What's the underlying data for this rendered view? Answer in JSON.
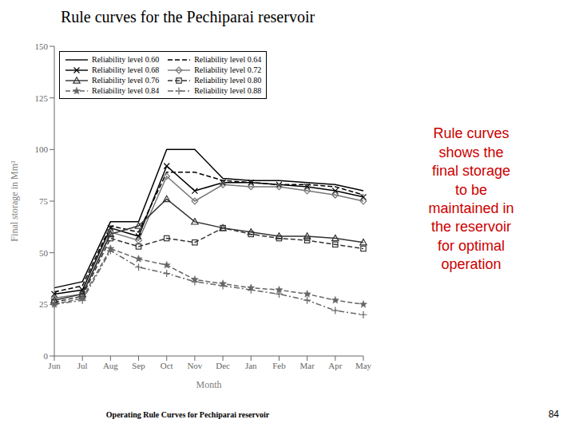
{
  "chart_data": {
    "type": "line",
    "title": "Rule curves for the Pechiparai reservoir",
    "subtitle": "Operating Rule Curves for Pechiparai reservoir",
    "xlabel": "Month",
    "ylabel": "Final storage in Mm³",
    "categories": [
      "Jun",
      "Jul",
      "Aug",
      "Sep",
      "Oct",
      "Nov",
      "Dec",
      "Jan",
      "Feb",
      "Mar",
      "Apr",
      "May"
    ],
    "series": [
      {
        "name": "Reliability level 0.60",
        "color": "#000000",
        "line_style": "solid",
        "marker": "none",
        "values": [
          33,
          36,
          65,
          65,
          100,
          100,
          86,
          85,
          85,
          84,
          83,
          80
        ]
      },
      {
        "name": "Reliability level 0.64",
        "color": "#000000",
        "line_style": "dashed",
        "marker": "none",
        "values": [
          31,
          34,
          63,
          60,
          89,
          89,
          85,
          84,
          83,
          83,
          82,
          78
        ]
      },
      {
        "name": "Reliability level 0.68",
        "color": "#000000",
        "line_style": "solid",
        "marker": "x",
        "values": [
          30,
          32,
          62,
          58,
          92,
          80,
          84,
          84,
          83,
          82,
          80,
          77
        ]
      },
      {
        "name": "Reliability level 0.72",
        "color": "#777777",
        "line_style": "solid",
        "marker": "diamond",
        "values": [
          28,
          30,
          60,
          56,
          87,
          75,
          83,
          82,
          82,
          80,
          78,
          75
        ]
      },
      {
        "name": "Reliability level 0.76",
        "color": "#333333",
        "line_style": "solid",
        "marker": "triangle",
        "values": [
          27,
          30,
          59,
          63,
          76,
          65,
          62,
          60,
          58,
          58,
          57,
          55
        ]
      },
      {
        "name": "Reliability level 0.80",
        "color": "#333333",
        "line_style": "dashed",
        "marker": "square",
        "values": [
          26,
          29,
          57,
          53,
          57,
          55,
          62,
          59,
          57,
          56,
          54,
          52
        ]
      },
      {
        "name": "Reliability level 0.84",
        "color": "#666666",
        "line_style": "dashed",
        "marker": "star",
        "values": [
          25,
          28,
          52,
          47,
          44,
          37,
          35,
          33,
          32,
          30,
          27,
          25
        ]
      },
      {
        "name": "Reliability level 0.88",
        "color": "#666666",
        "line_style": "dashdot",
        "marker": "plus",
        "values": [
          25,
          27,
          51,
          43,
          40,
          36,
          34,
          32,
          30,
          27,
          22,
          20
        ]
      }
    ],
    "ylim": [
      0,
      150
    ],
    "yticks": [
      0,
      25,
      50,
      75,
      100,
      125,
      150
    ],
    "grid": false,
    "legend": "upper left",
    "annotations": [
      {
        "text": "Rule curves\nshows the\nfinal storage\nto be\nmaintained in\nthe reservoir\nfor optimal\noperation",
        "color": "#cc0000"
      },
      {
        "text": "84"
      }
    ]
  }
}
